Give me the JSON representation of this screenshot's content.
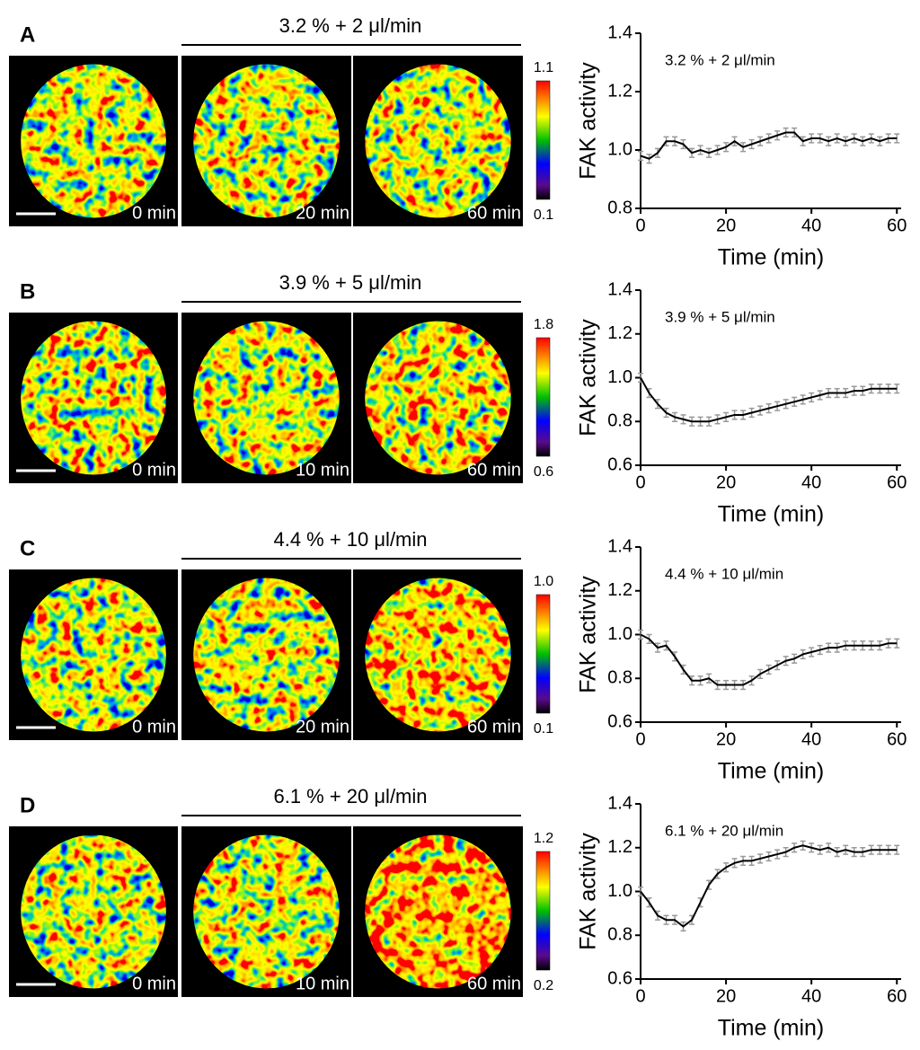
{
  "panels": [
    {
      "letter": "A",
      "header": "3.2 % + 2 μl/min",
      "images": [
        {
          "label": "0 min"
        },
        {
          "label": "20 min"
        },
        {
          "label": "60 min"
        }
      ],
      "colorbar": {
        "max": "1.1",
        "min": "0.1"
      }
    },
    {
      "letter": "B",
      "header": "3.9 % + 5 μl/min",
      "images": [
        {
          "label": "0 min"
        },
        {
          "label": "10 min"
        },
        {
          "label": "60 min"
        }
      ],
      "colorbar": {
        "max": "1.8",
        "min": "0.6"
      }
    },
    {
      "letter": "C",
      "header": "4.4 % + 10 μl/min",
      "images": [
        {
          "label": "0 min"
        },
        {
          "label": "20 min"
        },
        {
          "label": "60 min"
        }
      ],
      "colorbar": {
        "max": "1.0",
        "min": "0.1"
      }
    },
    {
      "letter": "D",
      "header": "6.1 % + 20 μl/min",
      "images": [
        {
          "label": "0 min"
        },
        {
          "label": "10 min"
        },
        {
          "label": "60 min"
        }
      ],
      "colorbar": {
        "max": "1.2",
        "min": "0.2"
      }
    }
  ],
  "chart_data": [
    {
      "type": "line",
      "annotation": "3.2 % + 2 μl/min",
      "xlabel": "Time (min)",
      "ylabel": "FAK  activity",
      "x": [
        0,
        2,
        4,
        6,
        8,
        10,
        12,
        14,
        16,
        18,
        20,
        22,
        24,
        26,
        28,
        30,
        32,
        34,
        36,
        38,
        40,
        42,
        44,
        46,
        48,
        50,
        52,
        54,
        56,
        58,
        60
      ],
      "series": [
        {
          "color": "#000000",
          "error_color": "#999999",
          "values": [
            0.98,
            0.97,
            0.99,
            1.03,
            1.03,
            1.02,
            0.99,
            1.0,
            0.99,
            1.0,
            1.01,
            1.03,
            1.01,
            1.02,
            1.03,
            1.04,
            1.05,
            1.06,
            1.06,
            1.03,
            1.04,
            1.04,
            1.03,
            1.04,
            1.03,
            1.04,
            1.03,
            1.04,
            1.03,
            1.04,
            1.04
          ],
          "errors": [
            0.015,
            0.015,
            0.015,
            0.015,
            0.015,
            0.015,
            0.015,
            0.015,
            0.015,
            0.015,
            0.015,
            0.015,
            0.015,
            0.015,
            0.015,
            0.015,
            0.015,
            0.015,
            0.015,
            0.015,
            0.015,
            0.015,
            0.015,
            0.015,
            0.015,
            0.015,
            0.015,
            0.015,
            0.015,
            0.015,
            0.015
          ]
        }
      ],
      "xlim": [
        0,
        61
      ],
      "xticks": [
        0,
        20,
        40,
        60
      ],
      "ylim": [
        0.8,
        1.4
      ],
      "yticks": [
        0.8,
        {
          "value": 1.0,
          "label": "1.0"
        },
        1.2,
        1.4
      ]
    },
    {
      "type": "line",
      "annotation": "3.9 % + 5 μl/min",
      "xlabel": "Time (min)",
      "ylabel": "FAK  activity",
      "x": [
        0,
        2,
        4,
        6,
        8,
        10,
        12,
        14,
        16,
        18,
        20,
        22,
        24,
        26,
        28,
        30,
        32,
        34,
        36,
        38,
        40,
        42,
        44,
        46,
        48,
        50,
        52,
        54,
        56,
        58,
        60
      ],
      "series": [
        {
          "color": "#000000",
          "error_color": "#999999",
          "values": [
            1.0,
            0.93,
            0.88,
            0.84,
            0.82,
            0.81,
            0.8,
            0.8,
            0.8,
            0.81,
            0.82,
            0.83,
            0.83,
            0.84,
            0.85,
            0.86,
            0.87,
            0.88,
            0.89,
            0.9,
            0.91,
            0.92,
            0.93,
            0.93,
            0.93,
            0.94,
            0.94,
            0.95,
            0.95,
            0.95,
            0.95
          ],
          "errors": [
            0.02,
            0.02,
            0.02,
            0.02,
            0.02,
            0.02,
            0.02,
            0.02,
            0.02,
            0.02,
            0.02,
            0.02,
            0.02,
            0.02,
            0.02,
            0.02,
            0.02,
            0.02,
            0.02,
            0.02,
            0.02,
            0.02,
            0.02,
            0.02,
            0.02,
            0.02,
            0.02,
            0.02,
            0.02,
            0.02,
            0.02
          ]
        }
      ],
      "xlim": [
        0,
        61
      ],
      "xticks": [
        0,
        20,
        40,
        60
      ],
      "ylim": [
        0.6,
        1.4
      ],
      "yticks": [
        0.6,
        0.8,
        {
          "value": 1.0,
          "label": "1.0"
        },
        1.2,
        1.4
      ]
    },
    {
      "type": "line",
      "annotation": "4.4 % + 10 μl/min",
      "xlabel": "Time (min)",
      "ylabel": "FAK  activity",
      "x": [
        0,
        2,
        4,
        6,
        8,
        10,
        12,
        14,
        16,
        18,
        20,
        22,
        24,
        26,
        28,
        30,
        32,
        34,
        36,
        38,
        40,
        42,
        44,
        46,
        48,
        50,
        52,
        54,
        56,
        58,
        60
      ],
      "series": [
        {
          "color": "#000000",
          "error_color": "#999999",
          "values": [
            1.0,
            0.98,
            0.94,
            0.95,
            0.9,
            0.84,
            0.79,
            0.79,
            0.8,
            0.77,
            0.77,
            0.77,
            0.77,
            0.79,
            0.82,
            0.84,
            0.86,
            0.88,
            0.89,
            0.91,
            0.92,
            0.93,
            0.94,
            0.94,
            0.95,
            0.95,
            0.95,
            0.95,
            0.95,
            0.96,
            0.96
          ],
          "errors": [
            0.02,
            0.02,
            0.02,
            0.02,
            0.02,
            0.02,
            0.02,
            0.02,
            0.02,
            0.02,
            0.02,
            0.02,
            0.02,
            0.02,
            0.02,
            0.02,
            0.02,
            0.02,
            0.02,
            0.02,
            0.02,
            0.02,
            0.02,
            0.02,
            0.02,
            0.02,
            0.02,
            0.02,
            0.02,
            0.02,
            0.02
          ]
        }
      ],
      "xlim": [
        0,
        61
      ],
      "xticks": [
        0,
        20,
        40,
        60
      ],
      "ylim": [
        0.6,
        1.4
      ],
      "yticks": [
        0.6,
        0.8,
        {
          "value": 1.0,
          "label": "1.0"
        },
        1.2,
        1.4
      ]
    },
    {
      "type": "line",
      "annotation": "6.1 % + 20 μl/min",
      "xlabel": "Time (min)",
      "ylabel": "FAK  activity",
      "x": [
        0,
        2,
        4,
        6,
        8,
        10,
        12,
        14,
        16,
        18,
        20,
        22,
        24,
        26,
        28,
        30,
        32,
        34,
        36,
        38,
        40,
        42,
        44,
        46,
        48,
        50,
        52,
        54,
        56,
        58,
        60
      ],
      "series": [
        {
          "color": "#000000",
          "error_color": "#999999",
          "values": [
            1.0,
            0.95,
            0.89,
            0.87,
            0.87,
            0.84,
            0.87,
            0.95,
            1.03,
            1.08,
            1.11,
            1.13,
            1.14,
            1.14,
            1.15,
            1.16,
            1.17,
            1.18,
            1.2,
            1.21,
            1.2,
            1.19,
            1.2,
            1.18,
            1.19,
            1.18,
            1.18,
            1.19,
            1.19,
            1.19,
            1.19
          ],
          "errors": [
            0.02,
            0.02,
            0.02,
            0.02,
            0.02,
            0.02,
            0.02,
            0.02,
            0.02,
            0.02,
            0.02,
            0.02,
            0.02,
            0.02,
            0.02,
            0.02,
            0.02,
            0.02,
            0.02,
            0.02,
            0.02,
            0.02,
            0.02,
            0.02,
            0.02,
            0.02,
            0.02,
            0.02,
            0.02,
            0.02,
            0.02
          ]
        }
      ],
      "xlim": [
        0,
        61
      ],
      "xticks": [
        0,
        20,
        40,
        60
      ],
      "ylim": [
        0.6,
        1.4
      ],
      "yticks": [
        0.6,
        0.8,
        {
          "value": 1.0,
          "label": "1.0"
        },
        1.2,
        1.4
      ]
    }
  ]
}
